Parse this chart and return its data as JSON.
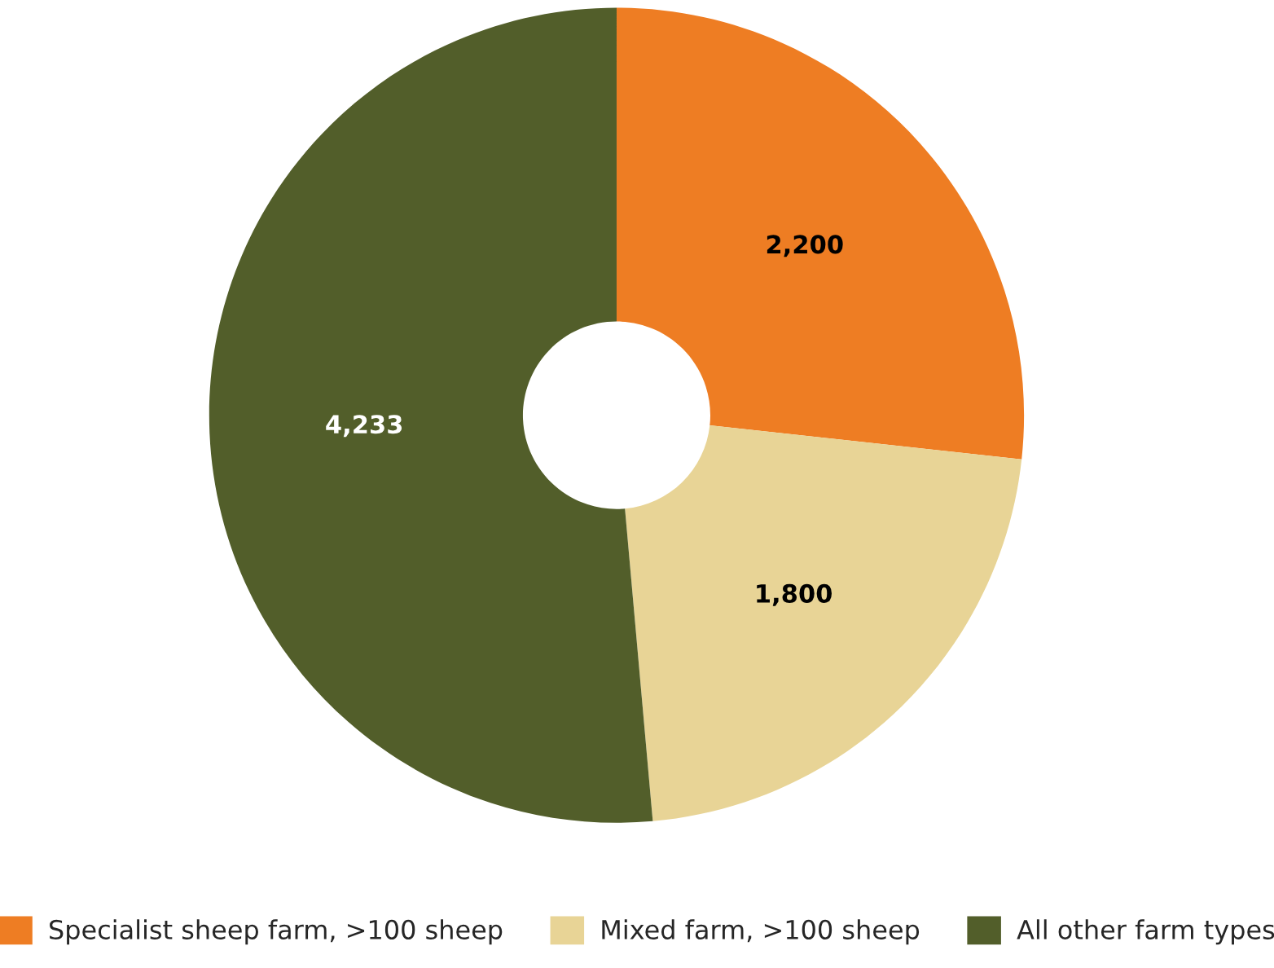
{
  "chart_data": {
    "type": "donut",
    "categories": [
      "Specialist sheep farm, >100 sheep",
      "Mixed farm, >100 sheep",
      "All other farm types"
    ],
    "values": [
      2200,
      1800,
      4233
    ],
    "value_labels": [
      "2,200",
      "1,800",
      "4,233"
    ],
    "colors": [
      "#ee7d23",
      "#e8d496",
      "#525e2a"
    ],
    "legend": "bottom"
  }
}
